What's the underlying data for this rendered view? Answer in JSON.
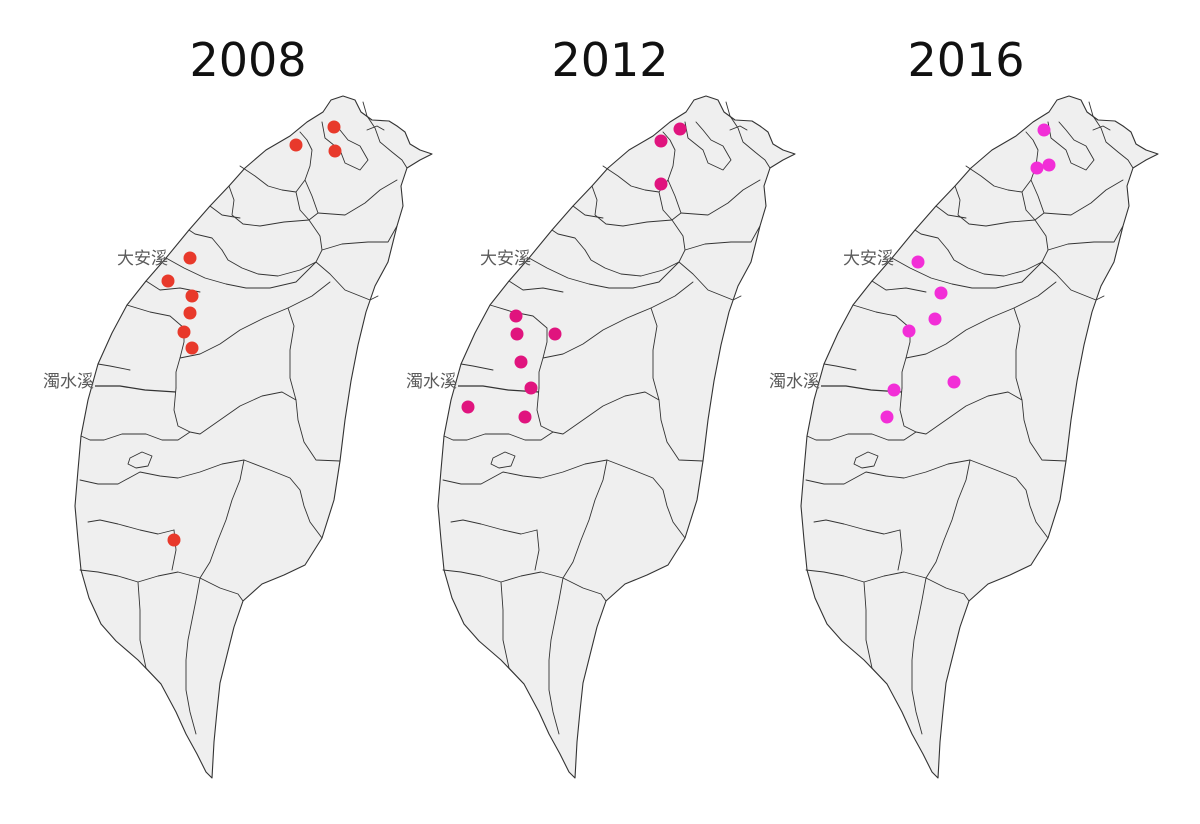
{
  "colors": {
    "land": "#efefef",
    "border": "#333333",
    "label": "#5b5b5b"
  },
  "maps": [
    {
      "year": "2008",
      "dot_color": "#e8392b",
      "river_labels": [
        "大安溪",
        "濁水溪"
      ]
    },
    {
      "year": "2012",
      "dot_color": "#e0147e",
      "river_labels": [
        "大安溪",
        "濁水溪"
      ]
    },
    {
      "year": "2016",
      "dot_color": "#f22ed7",
      "river_labels": [
        "大安溪",
        "濁水溪"
      ]
    }
  ]
}
